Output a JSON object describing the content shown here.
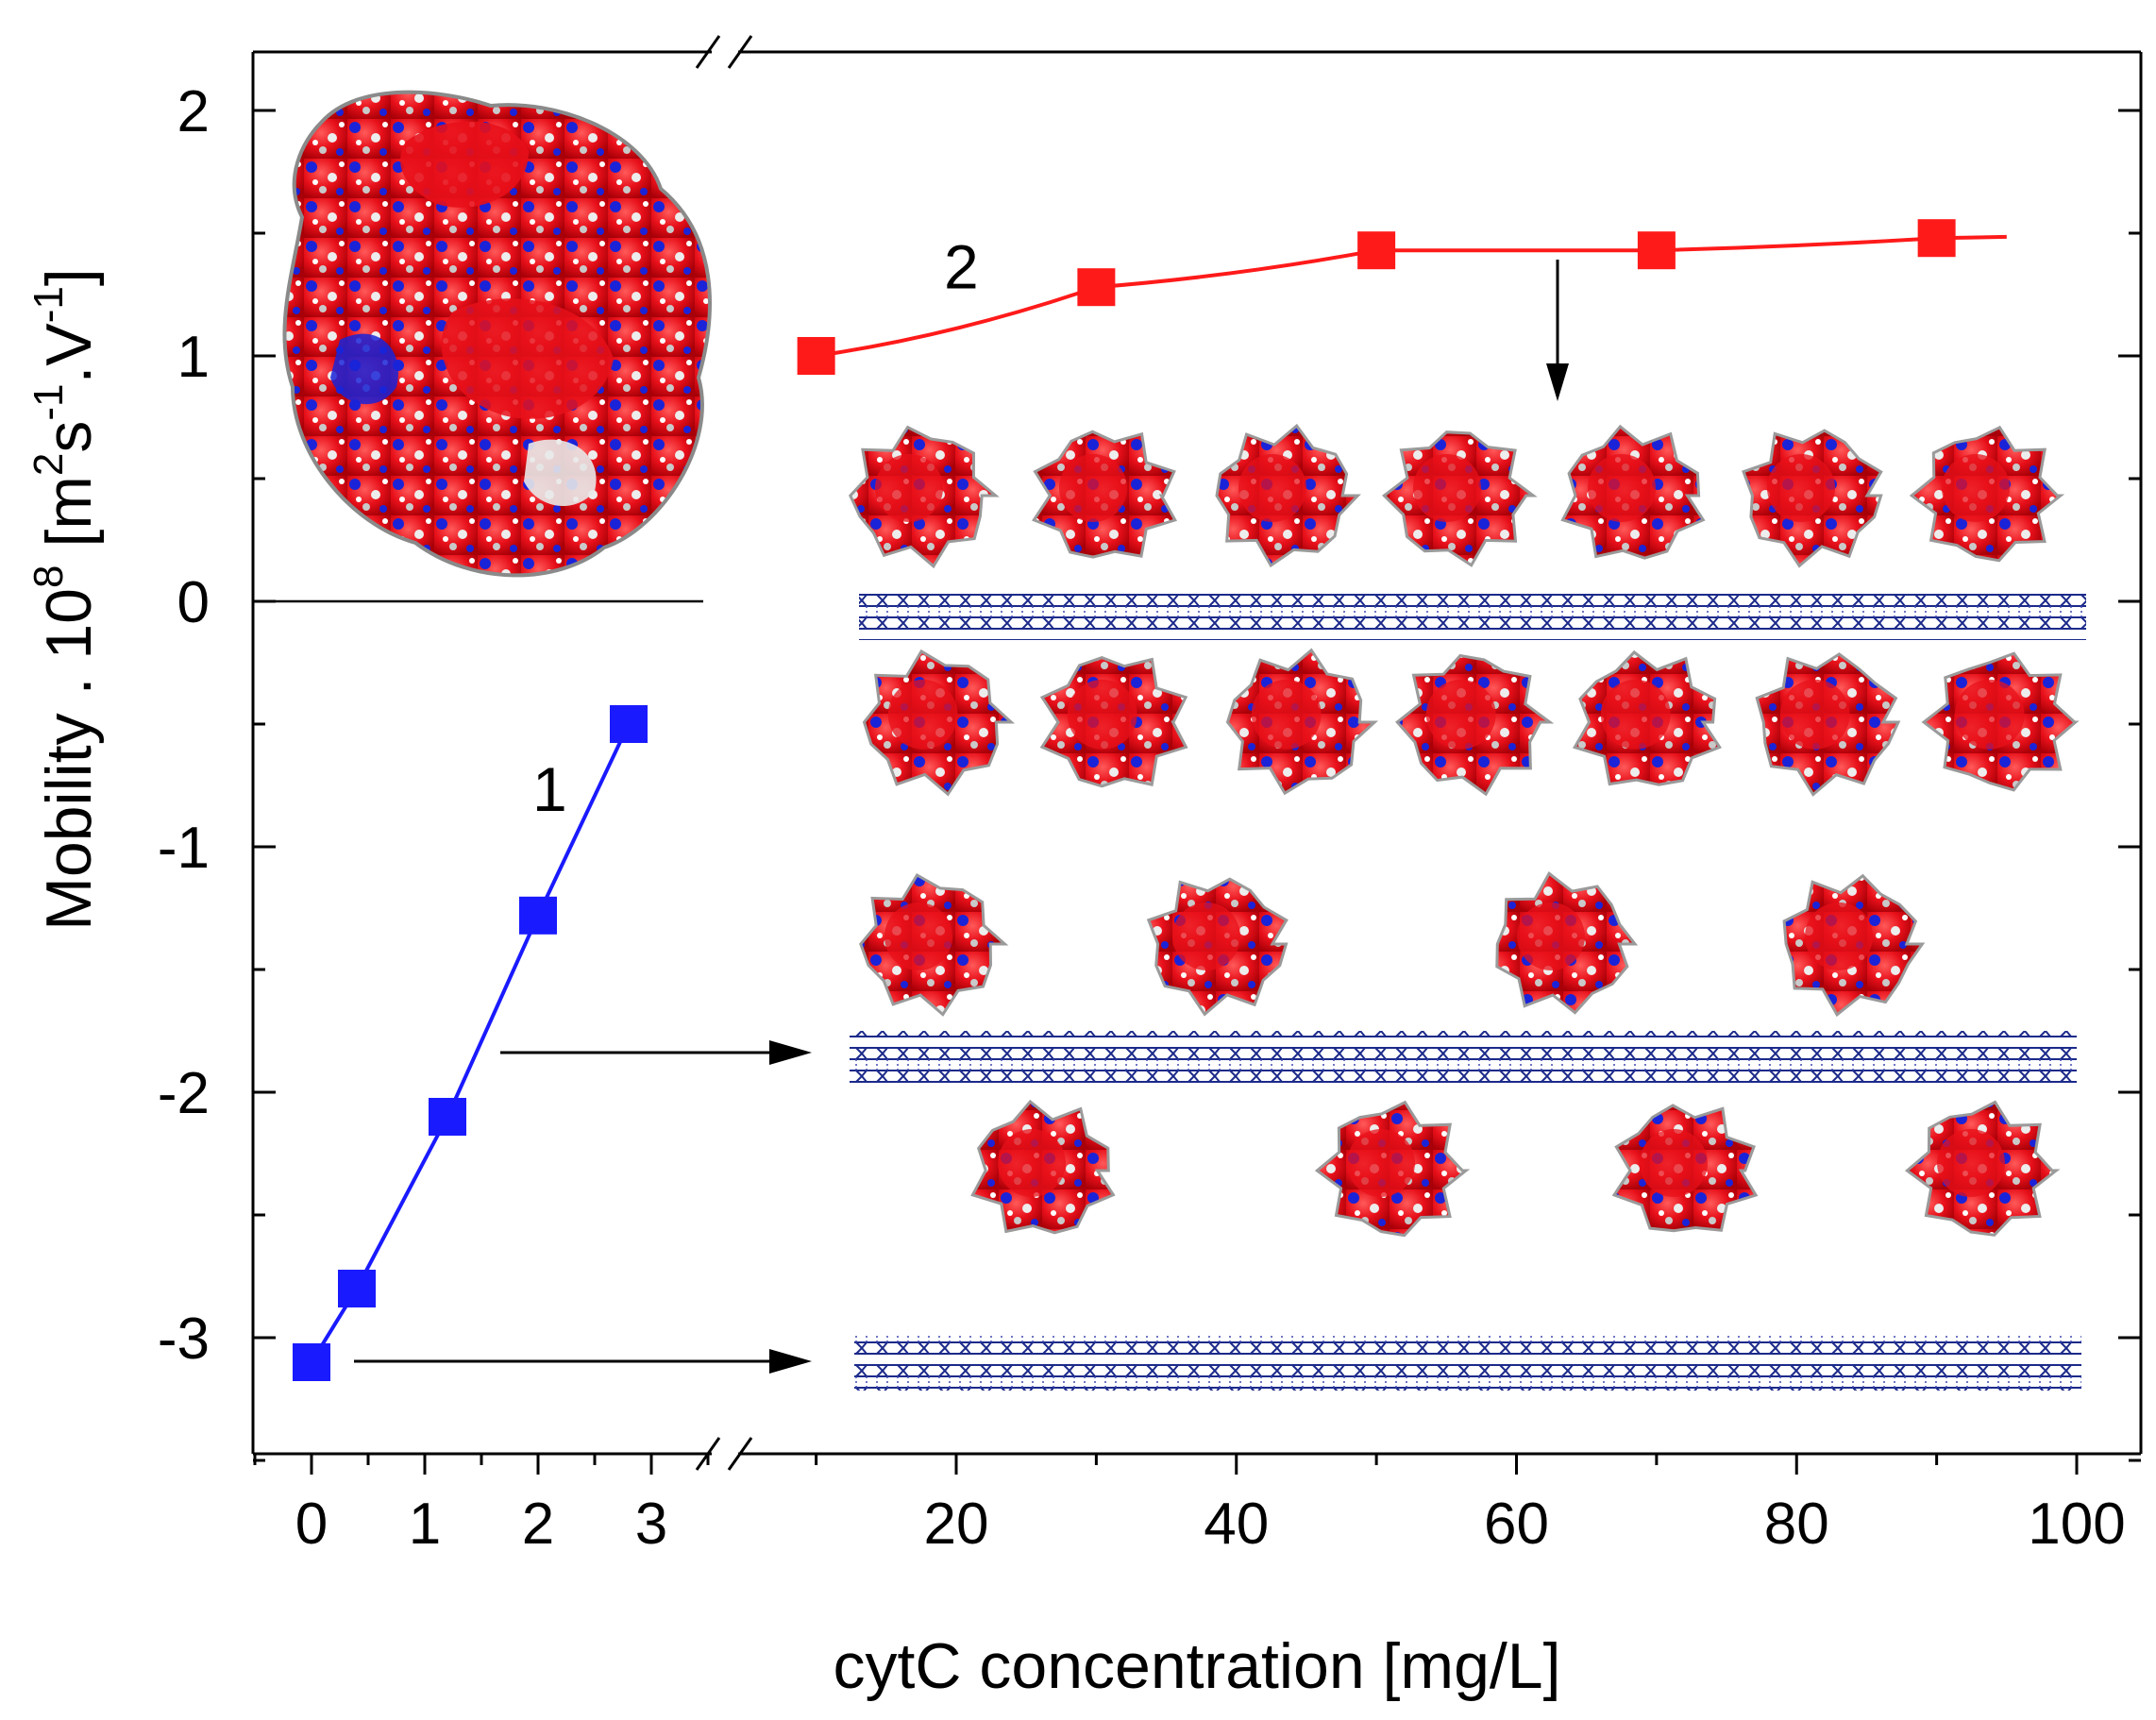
{
  "chart_data": {
    "type": "line",
    "title": "",
    "xlabel": "cytC concentration [mg/L]",
    "ylabel_main": "Mobility . 10",
    "ylabel_exp": "8",
    "ylabel_unit_open": "  [m",
    "ylabel_unit_sup1": "2",
    "ylabel_unit_mid": "s",
    "ylabel_unit_sup2": "-1",
    "ylabel_unit_mid2": ".V",
    "ylabel_unit_sup3": "-1",
    "ylabel_unit_close": "]",
    "ylim": [
      -3.5,
      2.3
    ],
    "y_ticks": [
      2,
      1,
      0,
      -1,
      -2,
      -3
    ],
    "y_tick_labels": [
      "2",
      "1",
      "0",
      "-1",
      "-2",
      "-3"
    ],
    "x_axis_break": true,
    "x_segments": [
      {
        "range": [
          -0.5,
          3.5
        ],
        "ticks": [
          0,
          1,
          2,
          3
        ],
        "tick_labels": [
          "0",
          "1",
          "2",
          "3"
        ]
      },
      {
        "range": [
          8,
          104
        ],
        "ticks": [
          20,
          40,
          60,
          80,
          100
        ],
        "tick_labels": [
          "20",
          "40",
          "60",
          "80",
          "100"
        ]
      }
    ],
    "series": [
      {
        "name": "1",
        "color": "#1a1aff",
        "x": [
          0,
          0.4,
          1.2,
          2.0,
          2.8
        ],
        "y": [
          -3.1,
          -2.8,
          -2.1,
          -1.28,
          -0.5
        ]
      },
      {
        "name": "2",
        "color": "#ff1a1a",
        "x": [
          10,
          30,
          50,
          70,
          90
        ],
        "y": [
          1.0,
          1.28,
          1.43,
          1.43,
          1.48
        ],
        "fit_end_x": 95
      }
    ],
    "zero_line": true
  },
  "colors": {
    "protein_red": "#e8101a",
    "protein_blue": "#1a23d8",
    "protein_white": "#e8e8e8",
    "graphene": "#1c2a8a"
  }
}
